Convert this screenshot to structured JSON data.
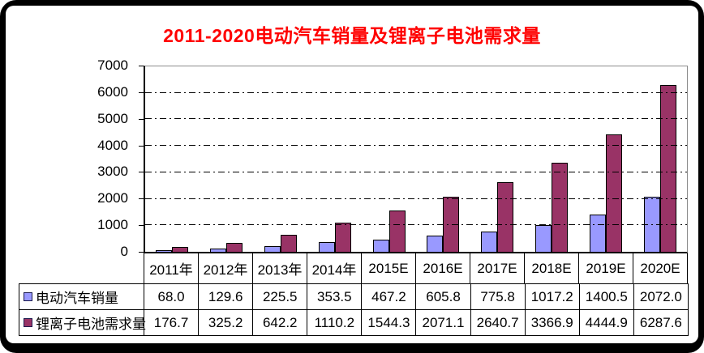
{
  "chart_data": {
    "type": "bar",
    "title": "2011-2020电动汽车销量及锂离子电池需求量",
    "title_color": "#FF0000",
    "categories": [
      "2011年",
      "2012年",
      "2013年",
      "2014年",
      "2015E",
      "2016E",
      "2017E",
      "2018E",
      "2019E",
      "2020E"
    ],
    "series": [
      {
        "key": "ev-sales",
        "name": "电动汽车销量",
        "color": "#9999FF",
        "values": [
          68.0,
          129.6,
          225.5,
          353.5,
          467.2,
          605.8,
          775.8,
          1017.2,
          1400.5,
          2072.0
        ]
      },
      {
        "key": "battery-demand",
        "name": "锂离子电池需求量",
        "color": "#993366",
        "values": [
          176.7,
          325.2,
          642.2,
          1110.2,
          1544.3,
          2071.1,
          2640.7,
          3366.9,
          4444.9,
          6287.6
        ]
      }
    ],
    "ylim": [
      0,
      7000
    ],
    "ytick_step": 1000,
    "ytick_labels": [
      "0",
      "1000",
      "2000",
      "3000",
      "4000",
      "5000",
      "6000",
      "7000"
    ],
    "grid": "horizontal-dash-dot",
    "legend_position": "data-table-left",
    "bar_border_color": "#000000",
    "xlabel": "",
    "ylabel": ""
  }
}
